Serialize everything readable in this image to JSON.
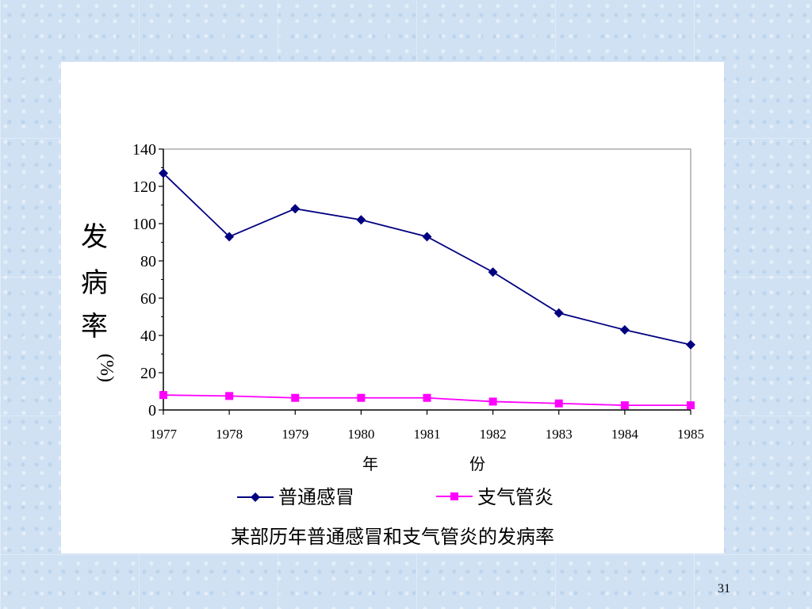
{
  "chart_data": {
    "type": "line",
    "x": [
      "1977",
      "1978",
      "1979",
      "1980",
      "1981",
      "1982",
      "1983",
      "1984",
      "1985"
    ],
    "series": [
      {
        "name": "普通感冒",
        "color": "#000080",
        "marker": "diamond",
        "values": [
          127,
          93,
          108,
          102,
          93,
          74,
          52,
          43,
          35
        ]
      },
      {
        "name": "支气管炎",
        "color": "#ff00ff",
        "marker": "square",
        "values": [
          8,
          7.5,
          6.5,
          6.5,
          6.5,
          4.5,
          3.5,
          2.5,
          2.5
        ]
      }
    ],
    "ylim": [
      0,
      140
    ],
    "yticks": [
      0,
      20,
      40,
      60,
      80,
      100,
      120,
      140
    ],
    "ylabel_chars": [
      "发",
      "病",
      "率",
      "(%)"
    ],
    "xlabel_chars": [
      "年",
      "份"
    ],
    "caption": "某部历年普通感冒和支气管炎的发病率",
    "legend_position": "bottom",
    "grid": false
  },
  "page_number": "31"
}
